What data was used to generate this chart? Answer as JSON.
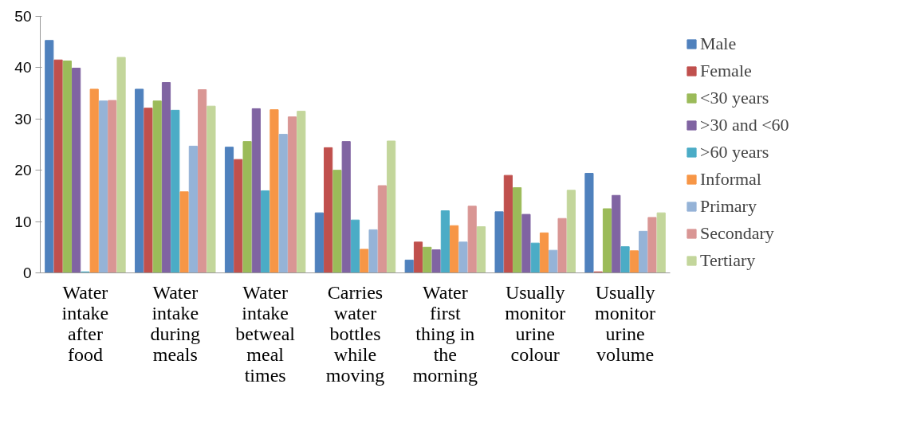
{
  "chart_data": {
    "type": "bar",
    "categories": [
      "Water\nintake\nafter\nfood",
      "Water\nintake\nduring\nmeals",
      "Water\nintake\nbetweal\nmeal\ntimes",
      "Carries\nwater\nbottles\nwhile\nmoving",
      "Water\nfirst\nthing in\nthe\nmorning",
      "Usually\nmonitor\nurine\ncolour",
      "Usually\nmonitor\nurine\nvolume"
    ],
    "series": [
      {
        "name": "Male",
        "color": "#4f81bd",
        "values": [
          45.3,
          35.8,
          24.5,
          11.7,
          2.5,
          11.9,
          19.4
        ]
      },
      {
        "name": "Female",
        "color": "#c0504d",
        "values": [
          41.5,
          32.1,
          22.1,
          24.4,
          6,
          19,
          0.2
        ]
      },
      {
        "name": "<30 years",
        "color": "#9bbb59",
        "values": [
          41.3,
          33.5,
          25.6,
          20,
          5,
          16.6,
          12.5
        ]
      },
      {
        "name": ">30 and <60",
        "color": "#8064a2",
        "values": [
          39.9,
          37.1,
          32,
          25.6,
          4.5,
          11.4,
          15.1
        ]
      },
      {
        "name": ">60 years",
        "color": "#4bacc6",
        "values": [
          0.2,
          31.7,
          16,
          10.3,
          12.1,
          5.8,
          5.1
        ]
      },
      {
        "name": "Informal",
        "color": "#f79646",
        "values": [
          35.8,
          15.8,
          31.8,
          4.6,
          9.2,
          7.8,
          4.3
        ]
      },
      {
        "name": "Primary",
        "color": "#95b3d7",
        "values": [
          33.5,
          24.7,
          27,
          8.4,
          6,
          4.4,
          8.1
        ]
      },
      {
        "name": "Secondary",
        "color": "#d99694",
        "values": [
          33.6,
          35.7,
          30.4,
          17,
          13,
          10.6,
          10.8
        ]
      },
      {
        "name": "Tertiary",
        "color": "#c3d69b",
        "values": [
          42,
          32.5,
          31.5,
          25.7,
          9,
          16.1,
          11.7
        ]
      }
    ],
    "ylim": [
      0,
      50
    ],
    "yticks": [
      0,
      10,
      20,
      30,
      40,
      50
    ],
    "grid": false,
    "legend": "right"
  }
}
